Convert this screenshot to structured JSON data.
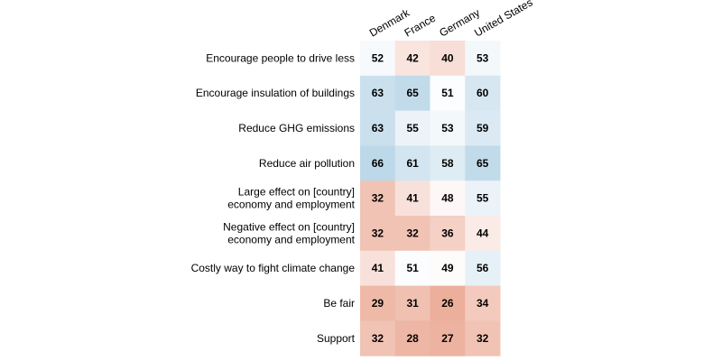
{
  "chart_data": {
    "type": "heatmap",
    "title": "",
    "columns": [
      "Denmark",
      "France",
      "Germany",
      "United States"
    ],
    "rows": [
      {
        "label": [
          "Encourage people to drive less"
        ],
        "values": [
          52,
          42,
          40,
          53
        ]
      },
      {
        "label": [
          "Encourage insulation of buildings"
        ],
        "values": [
          63,
          65,
          51,
          60
        ]
      },
      {
        "label": [
          "Reduce GHG emissions"
        ],
        "values": [
          63,
          55,
          53,
          59
        ]
      },
      {
        "label": [
          "Reduce air pollution"
        ],
        "values": [
          66,
          61,
          58,
          65
        ]
      },
      {
        "label": [
          "Large effect on [country]",
          "economy and employment"
        ],
        "values": [
          32,
          41,
          48,
          55
        ]
      },
      {
        "label": [
          "Negative effect on [country]",
          "economy and employment"
        ],
        "values": [
          32,
          32,
          36,
          44
        ]
      },
      {
        "label": [
          "Costly way to fight climate change"
        ],
        "values": [
          41,
          51,
          49,
          56
        ]
      },
      {
        "label": [
          "Be fair"
        ],
        "values": [
          29,
          31,
          26,
          34
        ]
      },
      {
        "label": [
          "Support"
        ],
        "values": [
          32,
          28,
          27,
          32
        ]
      }
    ],
    "color_scale": {
      "type": "diverging",
      "midpoint": 50,
      "low_color": "#e07a5a",
      "mid_color": "#ffffff",
      "high_color": "#5b9fc9",
      "min": 10,
      "max": 90
    },
    "grid": false,
    "legend": "none"
  }
}
